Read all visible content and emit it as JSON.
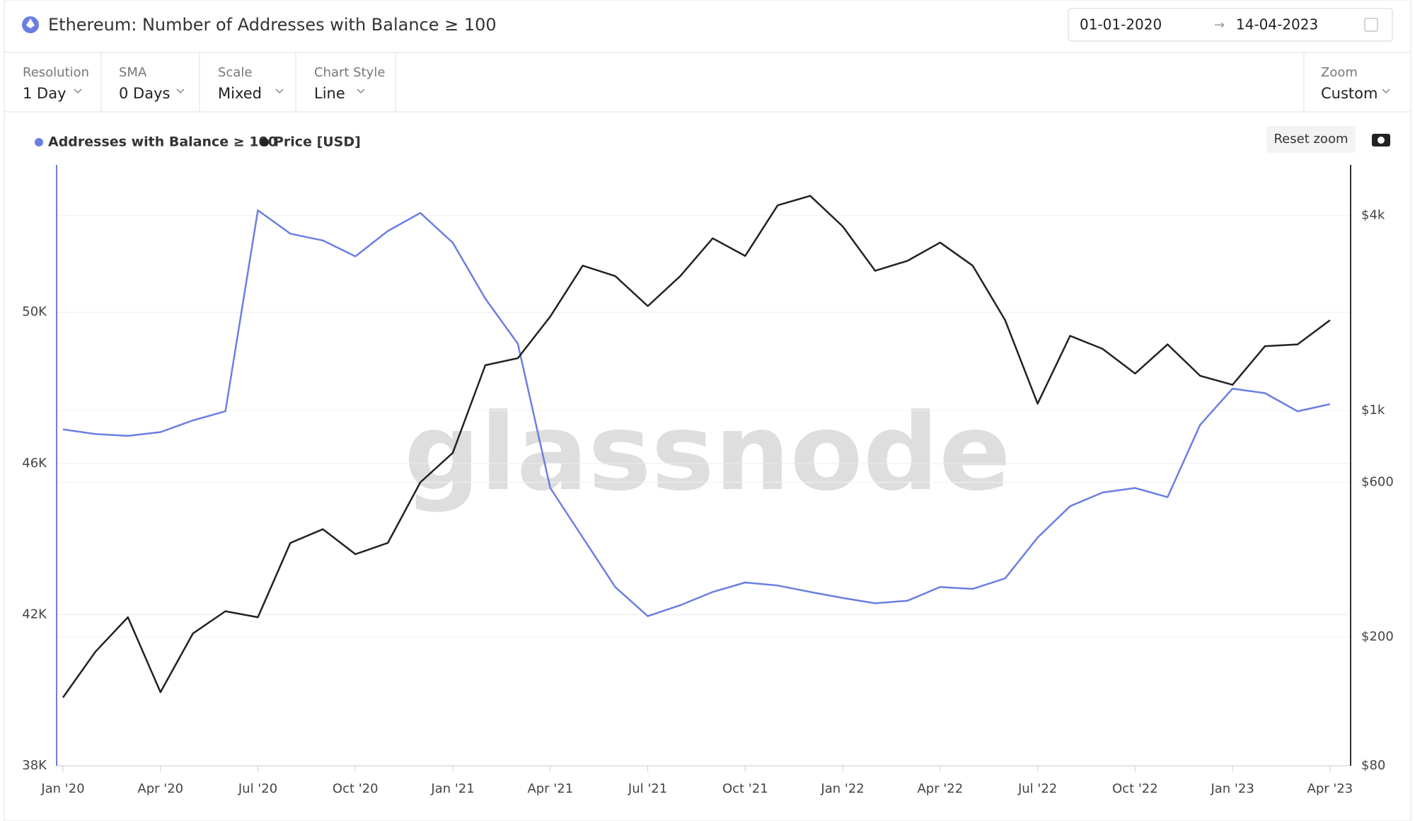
{
  "header": {
    "title": "Ethereum: Number of Addresses with Balance ≥ 100",
    "date_from": "01-01-2020",
    "date_to": "14-04-2023"
  },
  "controls": [
    {
      "label": "Resolution",
      "value": "1 Day"
    },
    {
      "label": "SMA",
      "value": "0 Days"
    },
    {
      "label": "Scale",
      "value": "Mixed"
    },
    {
      "label": "Chart Style",
      "value": "Line"
    }
  ],
  "zoom": {
    "label": "Zoom",
    "value": "Custom"
  },
  "reset_zoom": "Reset zoom",
  "watermark": "glassnode",
  "chart_data": {
    "type": "line",
    "x": [
      "2020-01",
      "2020-02",
      "2020-03",
      "2020-04",
      "2020-05",
      "2020-06",
      "2020-07",
      "2020-08",
      "2020-09",
      "2020-10",
      "2020-11",
      "2020-12",
      "2021-01",
      "2021-02",
      "2021-03",
      "2021-04",
      "2021-05",
      "2021-06",
      "2021-07",
      "2021-08",
      "2021-09",
      "2021-10",
      "2021-11",
      "2021-12",
      "2022-01",
      "2022-02",
      "2022-03",
      "2022-04",
      "2022-05",
      "2022-06",
      "2022-07",
      "2022-08",
      "2022-09",
      "2022-10",
      "2022-11",
      "2022-12",
      "2023-01",
      "2023-02",
      "2023-03",
      "2023-04"
    ],
    "xticks": [
      {
        "value": "2020-01",
        "label": "Jan '20"
      },
      {
        "value": "2020-04",
        "label": "Apr '20"
      },
      {
        "value": "2020-07",
        "label": "Jul '20"
      },
      {
        "value": "2020-10",
        "label": "Oct '20"
      },
      {
        "value": "2021-01",
        "label": "Jan '21"
      },
      {
        "value": "2021-04",
        "label": "Apr '21"
      },
      {
        "value": "2021-07",
        "label": "Jul '21"
      },
      {
        "value": "2021-10",
        "label": "Oct '21"
      },
      {
        "value": "2022-01",
        "label": "Jan '22"
      },
      {
        "value": "2022-04",
        "label": "Apr '22"
      },
      {
        "value": "2022-07",
        "label": "Jul '22"
      },
      {
        "value": "2022-10",
        "label": "Oct '22"
      },
      {
        "value": "2023-01",
        "label": "Jan '23"
      },
      {
        "value": "2023-04",
        "label": "Apr '23"
      }
    ],
    "ylim": [
      38000,
      53900
    ],
    "yticks": [
      {
        "value": 38000,
        "label": "38K"
      },
      {
        "value": 42000,
        "label": "42K"
      },
      {
        "value": 46000,
        "label": "46K"
      },
      {
        "value": 50000,
        "label": "50K"
      }
    ],
    "y2lim": [
      80,
      5730
    ],
    "y2log": true,
    "y2ticks": [
      {
        "value": 80,
        "label": "$80"
      },
      {
        "value": 200,
        "label": "$200"
      },
      {
        "value": 600,
        "label": "$600"
      },
      {
        "value": 1000,
        "label": "$1k"
      },
      {
        "value": 4000,
        "label": "$4k"
      }
    ],
    "grid": true,
    "series": [
      {
        "name": "Addresses with Balance ≥ 100",
        "color": "#6a7fe2",
        "values": [
          46900,
          46780,
          46730,
          46830,
          47140,
          47380,
          52700,
          52080,
          51900,
          51480,
          52150,
          52630,
          51840,
          50360,
          49170,
          45350,
          44040,
          42730,
          41960,
          42250,
          42600,
          42850,
          42770,
          42600,
          42440,
          42300,
          42370,
          42730,
          42680,
          42960,
          44040,
          44870,
          45230,
          45350,
          45110,
          47020,
          47980,
          47860,
          47380,
          47570
        ]
      },
      {
        "name": "Price [USD]",
        "color": "#222222",
        "axis": "y2",
        "values": [
          130,
          180,
          230,
          135,
          205,
          240,
          230,
          390,
          430,
          360,
          390,
          600,
          740,
          1380,
          1450,
          1950,
          2800,
          2600,
          2100,
          2600,
          3400,
          3000,
          4300,
          4600,
          3700,
          2700,
          2900,
          3300,
          2800,
          1900,
          1050,
          1700,
          1550,
          1300,
          1600,
          1280,
          1200,
          1580,
          1600,
          1900
        ]
      }
    ]
  }
}
